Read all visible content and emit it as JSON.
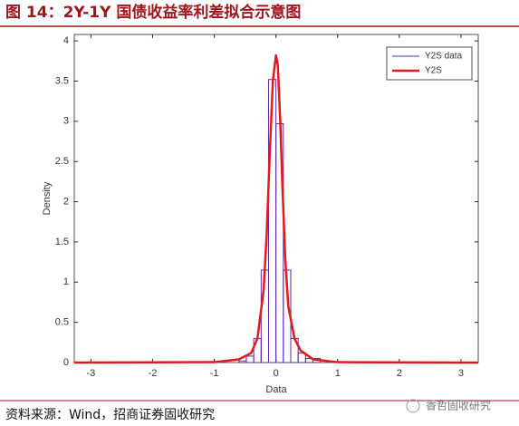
{
  "title": "图 14：2Y-1Y 国债收益率利差拟合示意图",
  "source": "资料来源：Wind，招商证券固收研究",
  "watermark": "香哲固收研究",
  "chart_data": {
    "type": "histogram",
    "xlabel": "Data",
    "ylabel": "Density",
    "xlim": [
      -3.27,
      3.28
    ],
    "ylim": [
      0,
      4.08
    ],
    "xticks": [
      -3,
      -2,
      -1,
      0,
      1,
      2,
      3
    ],
    "yticks": [
      0,
      0.5,
      1,
      1.5,
      2,
      2.5,
      3,
      3.5,
      4
    ],
    "legend": "upper right",
    "histogram": {
      "name": "Y2S data",
      "color": "#5b2a9e",
      "bins": [
        -0.6,
        -0.48,
        -0.36,
        -0.24,
        -0.12,
        0,
        0.12,
        0.24,
        0.36,
        0.48,
        0.6,
        0.72
      ],
      "values": [
        0.02,
        0.08,
        0.3,
        1.15,
        3.52,
        2.97,
        1.15,
        0.3,
        0.12,
        0.05,
        0.05
      ]
    },
    "fit": {
      "name": "Y2S",
      "color": "#e3191b",
      "x": [
        -3.27,
        -1,
        -0.6,
        -0.4,
        -0.3,
        -0.2,
        -0.15,
        -0.1,
        -0.05,
        0,
        0.03,
        0.07,
        0.1,
        0.15,
        0.2,
        0.3,
        0.4,
        0.6,
        1,
        3.28
      ],
      "values": [
        0,
        0.005,
        0.04,
        0.12,
        0.3,
        0.9,
        1.6,
        2.6,
        3.5,
        3.82,
        3.7,
        3.0,
        2.3,
        1.3,
        0.7,
        0.3,
        0.15,
        0.04,
        0.005,
        0
      ]
    }
  }
}
